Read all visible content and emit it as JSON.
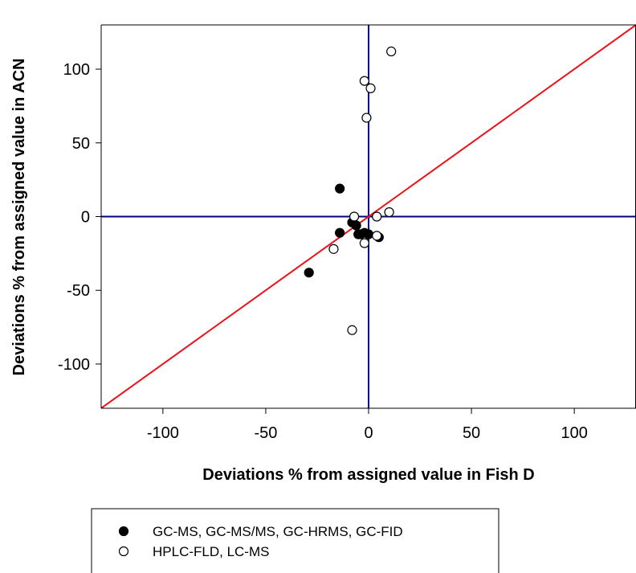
{
  "chart_data": {
    "type": "scatter",
    "xlabel": "Deviations % from assigned value in Fish D",
    "ylabel": "Deviations % from assigned value in ACN",
    "xlim": [
      -130,
      130
    ],
    "ylim": [
      -130,
      130
    ],
    "xticks": [
      -100,
      -50,
      0,
      50,
      100
    ],
    "yticks": [
      -100,
      -50,
      0,
      50,
      100
    ],
    "grid": false,
    "legend_position": "bottom",
    "reference_lines": [
      {
        "type": "horizontal",
        "y": 0,
        "color": "#000080"
      },
      {
        "type": "vertical",
        "x": 0,
        "color": "#000080"
      },
      {
        "type": "identity",
        "color": "#e8141b"
      }
    ],
    "series": [
      {
        "name": "GC-MS, GC-MS/MS, GC-HRMS, GC-FID",
        "marker": "filled-circle",
        "color": "#000000",
        "x": [
          -14,
          -29,
          -14,
          -8,
          -6,
          -5,
          -4,
          -2,
          0,
          5
        ],
        "y": [
          19,
          -38,
          -11,
          -4,
          -6,
          -12,
          -12,
          -11,
          -12,
          -14
        ]
      },
      {
        "name": "HPLC-FLD, LC-MS",
        "marker": "open-circle",
        "color": "#000000",
        "x": [
          11,
          -2,
          1,
          -1,
          -7,
          4,
          10,
          -17,
          -2,
          4,
          -8
        ],
        "y": [
          112,
          92,
          87,
          67,
          0,
          0,
          3,
          -22,
          -18,
          -13,
          -77
        ]
      }
    ]
  }
}
